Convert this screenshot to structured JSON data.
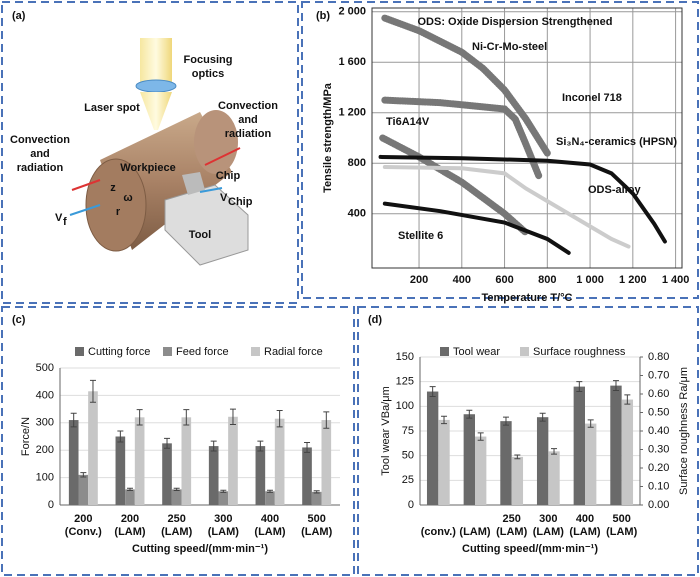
{
  "diagram": {
    "panel_label": "(a)",
    "texts": {
      "focusing": [
        "Focusing",
        "optics"
      ],
      "laser_spot": "Laser spot",
      "convection_right": [
        "Convection",
        "and",
        "radiation"
      ],
      "convection_left": [
        "Convection",
        "and",
        "radiation"
      ],
      "workpiece": "Workpiece",
      "chip": "Chip",
      "tool": "Tool",
      "v_chip": [
        "V",
        "Chip"
      ],
      "v_f": [
        "V",
        "f"
      ],
      "z": "z",
      "omega": "ω",
      "r": "r"
    }
  },
  "chart_data": [
    {
      "type": "line",
      "panel_label": "(b)",
      "annotations": [
        "ODS: Oxide Dispersion Strengthened"
      ],
      "x_label": "Temperature T/°C",
      "y_label": "Tensile strength/MPa",
      "grid": true,
      "xlim": [
        -20,
        1430
      ],
      "ylim": [
        -30,
        2030
      ],
      "xticks": [
        200,
        400,
        600,
        800,
        {
          "value": 1000,
          "label": "1 000"
        },
        {
          "value": 1200,
          "label": "1 200"
        },
        {
          "value": 1400,
          "label": "1 400"
        }
      ],
      "yticks": [
        400,
        800,
        {
          "value": 1200,
          "label": "1 200"
        },
        {
          "value": 1600,
          "label": "1 600"
        },
        {
          "value": 2000,
          "label": "2 000"
        }
      ],
      "series": [
        {
          "name": "Ni-Cr-Mo-steel",
          "style": "hatched",
          "color": "#777777",
          "x": [
            40,
            200,
            400,
            500,
            600,
            700,
            800
          ],
          "values": [
            1950,
            1850,
            1680,
            1550,
            1380,
            1150,
            880
          ]
        },
        {
          "name": "Inconel 718",
          "style": "hatched",
          "color": "#777777",
          "x": [
            40,
            300,
            600,
            650,
            700,
            760
          ],
          "values": [
            1300,
            1280,
            1230,
            1150,
            950,
            700
          ]
        },
        {
          "name": "Ti6A14V",
          "style": "hatched",
          "color": "#777777",
          "x": [
            30,
            200,
            400,
            600,
            700
          ],
          "values": [
            1000,
            850,
            650,
            400,
            250
          ]
        },
        {
          "name": "Si₃N₄-ceramics (HPSN)",
          "style": "solid",
          "color": "#111111",
          "x": [
            20,
            400,
            800,
            1000,
            1100,
            1200,
            1300,
            1350
          ],
          "values": [
            850,
            840,
            820,
            790,
            720,
            560,
            320,
            180
          ]
        },
        {
          "name": "ODS-alloy",
          "style": "solid",
          "color": "#cccccc",
          "x": [
            40,
            400,
            600,
            700,
            800,
            900,
            1000,
            1100,
            1180
          ],
          "values": [
            770,
            760,
            720,
            600,
            500,
            400,
            300,
            200,
            140
          ]
        },
        {
          "name": "Stellite 6",
          "style": "solid",
          "color": "#111111",
          "x": [
            40,
            300,
            600,
            800,
            900
          ],
          "values": [
            480,
            420,
            330,
            200,
            90
          ]
        }
      ]
    },
    {
      "type": "bar",
      "panel_label": "(c)",
      "x_label": "Cutting speed/(mm·min⁻¹)",
      "y_label": "Force/N",
      "grid": true,
      "ylim": [
        0,
        500
      ],
      "yticks": [
        0,
        100,
        200,
        300,
        400,
        500
      ],
      "categories": [
        [
          "200",
          "(Conv.)"
        ],
        [
          "200",
          "(LAM)"
        ],
        [
          "250",
          "(LAM)"
        ],
        [
          "300",
          "(LAM)"
        ],
        [
          "400",
          "(LAM)"
        ],
        [
          "500",
          "(LAM)"
        ]
      ],
      "series": [
        {
          "name": "Cutting force",
          "color": "#6a6a6a",
          "values": [
            310,
            250,
            225,
            215,
            215,
            210
          ],
          "errors": [
            25,
            20,
            18,
            18,
            18,
            18
          ]
        },
        {
          "name": "Feed force",
          "color": "#8c8c8c",
          "values": [
            110,
            57,
            57,
            50,
            50,
            48
          ],
          "errors": [
            8,
            4,
            4,
            4,
            4,
            4
          ]
        },
        {
          "name": "Radial force",
          "color": "#c6c6c6",
          "values": [
            415,
            320,
            320,
            322,
            315,
            310
          ],
          "errors": [
            40,
            28,
            28,
            28,
            30,
            30
          ]
        }
      ]
    },
    {
      "type": "bar",
      "panel_label": "(d)",
      "x_label": "Cutting speed/(mm·min⁻¹)",
      "y_label": "Tool wear VBa/μm",
      "y2_label": "Surface roughness Ra/μm",
      "grid": true,
      "ylim": [
        0,
        150
      ],
      "yticks": [
        0,
        25,
        50,
        75,
        100,
        125,
        150
      ],
      "y2lim": [
        0,
        0.8
      ],
      "y2ticks": [
        {
          "value": 0,
          "label": "0.00"
        },
        {
          "value": 0.1,
          "label": "0.10"
        },
        {
          "value": 0.2,
          "label": "0.20"
        },
        {
          "value": 0.3,
          "label": "0.30"
        },
        {
          "value": 0.4,
          "label": "0.40"
        },
        {
          "value": 0.5,
          "label": "0.50"
        },
        {
          "value": 0.6,
          "label": "0.60"
        },
        {
          "value": 0.7,
          "label": "0.70"
        },
        {
          "value": 0.8,
          "label": "0.80"
        }
      ],
      "categories": [
        [
          null,
          "(conv.)"
        ],
        [
          null,
          "(LAM)"
        ],
        [
          "250",
          "(LAM)"
        ],
        [
          "300",
          "(LAM)"
        ],
        [
          "400",
          "(LAM)"
        ],
        [
          "500",
          "(LAM)"
        ]
      ],
      "series": [
        {
          "name": "Tool wear",
          "color": "#6a6a6a",
          "values": [
            115,
            92,
            85,
            89,
            120,
            121
          ],
          "errors": [
            5,
            4,
            4,
            4,
            5,
            5
          ]
        },
        {
          "name": "Surface roughness",
          "color": "#c6c6c6",
          "axis": "y2",
          "values": [
            0.46,
            0.37,
            0.26,
            0.29,
            0.44,
            0.57
          ],
          "errors": [
            0.02,
            0.02,
            0.01,
            0.015,
            0.02,
            0.025
          ]
        }
      ]
    }
  ]
}
